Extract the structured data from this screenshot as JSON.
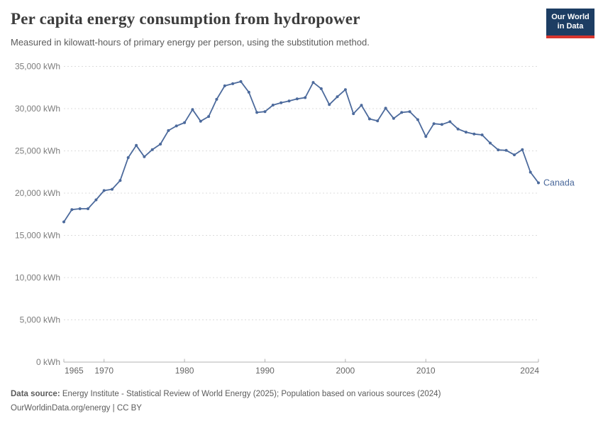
{
  "header": {
    "title": "Per capita energy consumption from hydropower",
    "subtitle": "Measured in kilowatt-hours of primary energy per person, using the substitution method.",
    "logo": {
      "line1": "Our World",
      "line2": "in Data",
      "bg_color": "#1d3d63",
      "stripe_color": "#d7352e"
    }
  },
  "chart_data": {
    "type": "line",
    "title": "Per capita energy consumption from hydropower",
    "subtitle": "Measured in kilowatt-hours of primary energy per person, using the substitution method.",
    "xlabel": "",
    "ylabel": "",
    "xlim": [
      1965,
      2024
    ],
    "ylim": [
      0,
      35000
    ],
    "grid": "horizontal-dashed",
    "legend_position": "end-of-line-label",
    "x_ticks": [
      {
        "value": 1965,
        "label": "1965"
      },
      {
        "value": 1970,
        "label": "1970"
      },
      {
        "value": 1980,
        "label": "1980"
      },
      {
        "value": 1990,
        "label": "1990"
      },
      {
        "value": 2000,
        "label": "2000"
      },
      {
        "value": 2010,
        "label": "2010"
      },
      {
        "value": 2024,
        "label": "2024"
      }
    ],
    "y_ticks": [
      {
        "value": 0,
        "label": "0 kWh"
      },
      {
        "value": 5000,
        "label": "5,000 kWh"
      },
      {
        "value": 10000,
        "label": "10,000 kWh"
      },
      {
        "value": 15000,
        "label": "15,000 kWh"
      },
      {
        "value": 20000,
        "label": "20,000 kWh"
      },
      {
        "value": 25000,
        "label": "25,000 kWh"
      },
      {
        "value": 30000,
        "label": "30,000 kWh"
      },
      {
        "value": 35000,
        "label": "35,000 kWh"
      }
    ],
    "series": [
      {
        "name": "Canada",
        "color": "#4c6a9c",
        "end_label": "Canada",
        "x": [
          1965,
          1966,
          1967,
          1968,
          1969,
          1970,
          1971,
          1972,
          1973,
          1974,
          1975,
          1976,
          1977,
          1978,
          1979,
          1980,
          1981,
          1982,
          1983,
          1984,
          1985,
          1986,
          1987,
          1988,
          1989,
          1990,
          1991,
          1992,
          1993,
          1994,
          1995,
          1996,
          1997,
          1998,
          1999,
          2000,
          2001,
          2002,
          2003,
          2004,
          2005,
          2006,
          2007,
          2008,
          2009,
          2010,
          2011,
          2012,
          2013,
          2014,
          2015,
          2016,
          2017,
          2018,
          2019,
          2020,
          2021,
          2022,
          2023,
          2024
        ],
        "values": [
          16600,
          18050,
          18150,
          18150,
          19200,
          20300,
          20450,
          21500,
          24200,
          25650,
          24300,
          25150,
          25800,
          27400,
          27950,
          28340,
          29890,
          28510,
          29070,
          31100,
          32700,
          32950,
          33200,
          31940,
          29550,
          29650,
          30420,
          30700,
          30900,
          31150,
          31300,
          33100,
          32360,
          30480,
          31400,
          32250,
          29400,
          30400,
          28780,
          28550,
          30050,
          28840,
          29550,
          29650,
          28700,
          26700,
          28220,
          28130,
          28450,
          27590,
          27215,
          26990,
          26890,
          25925,
          25120,
          25060,
          24530,
          25140,
          22480,
          21220
        ]
      }
    ]
  },
  "footer": {
    "source_label": "Data source:",
    "source_text": "Energy Institute - Statistical Review of World Energy (2025); Population based on various sources (2024)",
    "url_text": "OurWorldinData.org/energy",
    "separator": "|",
    "license": "CC BY"
  }
}
